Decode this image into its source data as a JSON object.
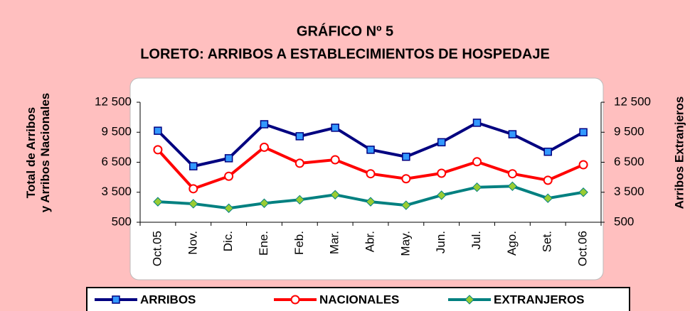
{
  "chart_data": {
    "type": "line",
    "title": "GRÁFICO Nº 5",
    "subtitle": "LORETO: ARRIBOS A ESTABLECIMIENTOS DE HOSPEDAJE",
    "y_label": "Total de Arribos y Arribos Nacionales",
    "y2_label": "Arribos Extranjeros",
    "categories": [
      "Oct.05",
      "Nov.",
      "Dic.",
      "Ene.",
      "Feb.",
      "Mar.",
      "Abr.",
      "May.",
      "Jun.",
      "Jul.",
      "Ago.",
      "Set.",
      "Oct.06"
    ],
    "series": [
      {
        "name": "ARRIBOS",
        "color": "#000080",
        "marker": "square",
        "values": [
          9650,
          6100,
          6900,
          10300,
          9100,
          9950,
          7750,
          7050,
          8500,
          10450,
          9300,
          7550,
          9500
        ]
      },
      {
        "name": "NACIONALES",
        "color": "#ff0000",
        "marker": "circle",
        "values": [
          7750,
          3850,
          5100,
          8000,
          6400,
          6750,
          5350,
          4850,
          5400,
          6550,
          5350,
          4700,
          6250
        ]
      },
      {
        "name": "EXTRANJEROS",
        "color": "#008080",
        "marker": "diamond",
        "axis": "y2",
        "values": [
          2550,
          2350,
          1900,
          2400,
          2750,
          3250,
          2550,
          2200,
          3200,
          4000,
          4100,
          2900,
          3500
        ]
      }
    ],
    "ylim": [
      500,
      12500
    ],
    "yticks": [
      500,
      {
        "value": 3500,
        "label": "3 500"
      },
      {
        "value": 6500,
        "label": "6 500"
      },
      {
        "value": 9500,
        "label": "9 500"
      },
      {
        "value": 12500,
        "label": "12 500"
      }
    ],
    "y2lim": [
      500,
      12500
    ],
    "y2ticks": [
      500,
      {
        "value": 3500,
        "label": "3 500"
      },
      {
        "value": 6500,
        "label": "6 500"
      },
      {
        "value": 9500,
        "label": "9 500"
      },
      {
        "value": 12500,
        "label": "12 500"
      }
    ]
  }
}
